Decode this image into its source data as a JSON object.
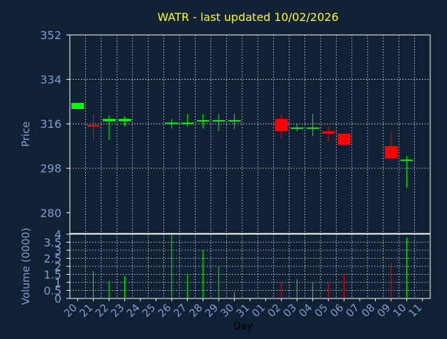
{
  "title": "WATR - last updated 10/02/2026",
  "colors": {
    "background": "#102035",
    "axis_text": "#7f9fcc",
    "title_text": "#ffff00",
    "grid": "#ffffff",
    "up": "#00ff00",
    "down": "#ff0000"
  },
  "chart_data": [
    {
      "type": "candlestick",
      "ylabel": "Price",
      "ylim": [
        271.6,
        352
      ],
      "yticks": [
        280,
        298,
        316,
        334,
        352
      ],
      "grid": true,
      "days": [
        "20",
        "21",
        "22",
        "23",
        "24",
        "25",
        "26",
        "27",
        "28",
        "29",
        "30",
        "31",
        "01",
        "02",
        "03",
        "04",
        "05",
        "06",
        "07",
        "08",
        "09",
        "10",
        "11"
      ],
      "candles": [
        {
          "day": "20",
          "open": 322.0,
          "close": 324.5,
          "high": 324.5,
          "low": 322.0
        },
        {
          "day": "21",
          "open": 315.5,
          "close": 315.0,
          "high": 320.0,
          "low": 309.0
        },
        {
          "day": "22",
          "open": 317.0,
          "close": 318.0,
          "high": 319.5,
          "low": 309.5
        },
        {
          "day": "23",
          "open": 317.0,
          "close": 318.0,
          "high": 319.0,
          "low": 315.0
        },
        {
          "day": "26",
          "open": 316.0,
          "close": 316.5,
          "high": 318.0,
          "low": 314.0
        },
        {
          "day": "27",
          "open": 316.0,
          "close": 316.5,
          "high": 320.0,
          "low": 315.0
        },
        {
          "day": "28",
          "open": 317.0,
          "close": 317.5,
          "high": 320.0,
          "low": 314.0
        },
        {
          "day": "29",
          "open": 317.0,
          "close": 317.5,
          "high": 320.0,
          "low": 313.0
        },
        {
          "day": "30",
          "open": 317.0,
          "close": 317.5,
          "high": 320.0,
          "low": 314.0
        },
        {
          "day": "02",
          "open": 318.0,
          "close": 313.0,
          "high": 320.0,
          "low": 310.0
        },
        {
          "day": "03",
          "open": 314.0,
          "close": 314.5,
          "high": 316.0,
          "low": 313.0
        },
        {
          "day": "04",
          "open": 314.0,
          "close": 314.5,
          "high": 320.0,
          "low": 311.0
        },
        {
          "day": "05",
          "open": 313.0,
          "close": 312.0,
          "high": 315.0,
          "low": 309.0
        },
        {
          "day": "06",
          "open": 312.0,
          "close": 307.5,
          "high": 312.0,
          "low": 307.0
        },
        {
          "day": "09",
          "open": 307.0,
          "close": 302.0,
          "high": 313.0,
          "low": 302.0
        },
        {
          "day": "10",
          "open": 301.0,
          "close": 301.5,
          "high": 303.0,
          "low": 290.0
        }
      ]
    },
    {
      "type": "bar",
      "ylabel": "Volume (0000)",
      "xlabel": "Day",
      "ylim": [
        0,
        4
      ],
      "yticks": [
        "0",
        "0.5",
        "1",
        "1.5",
        "2",
        "2.5",
        "3",
        "3.5",
        "4"
      ],
      "grid": true,
      "bars": [
        {
          "day": "21",
          "value": 1.7,
          "direction": "up"
        },
        {
          "day": "22",
          "value": 1.1,
          "direction": "up"
        },
        {
          "day": "23",
          "value": 1.4,
          "direction": "up"
        },
        {
          "day": "26",
          "value": 4.0,
          "direction": "up"
        },
        {
          "day": "27",
          "value": 1.5,
          "direction": "up"
        },
        {
          "day": "28",
          "value": 3.0,
          "direction": "up"
        },
        {
          "day": "29",
          "value": 2.0,
          "direction": "up"
        },
        {
          "day": "30",
          "value": 0.4,
          "direction": "up"
        },
        {
          "day": "02",
          "value": 1.0,
          "direction": "down"
        },
        {
          "day": "03",
          "value": 1.2,
          "direction": "up"
        },
        {
          "day": "04",
          "value": 1.0,
          "direction": "up"
        },
        {
          "day": "05",
          "value": 1.0,
          "direction": "down"
        },
        {
          "day": "06",
          "value": 1.5,
          "direction": "down"
        },
        {
          "day": "09",
          "value": 2.2,
          "direction": "down"
        },
        {
          "day": "10",
          "value": 3.8,
          "direction": "up"
        }
      ]
    }
  ]
}
